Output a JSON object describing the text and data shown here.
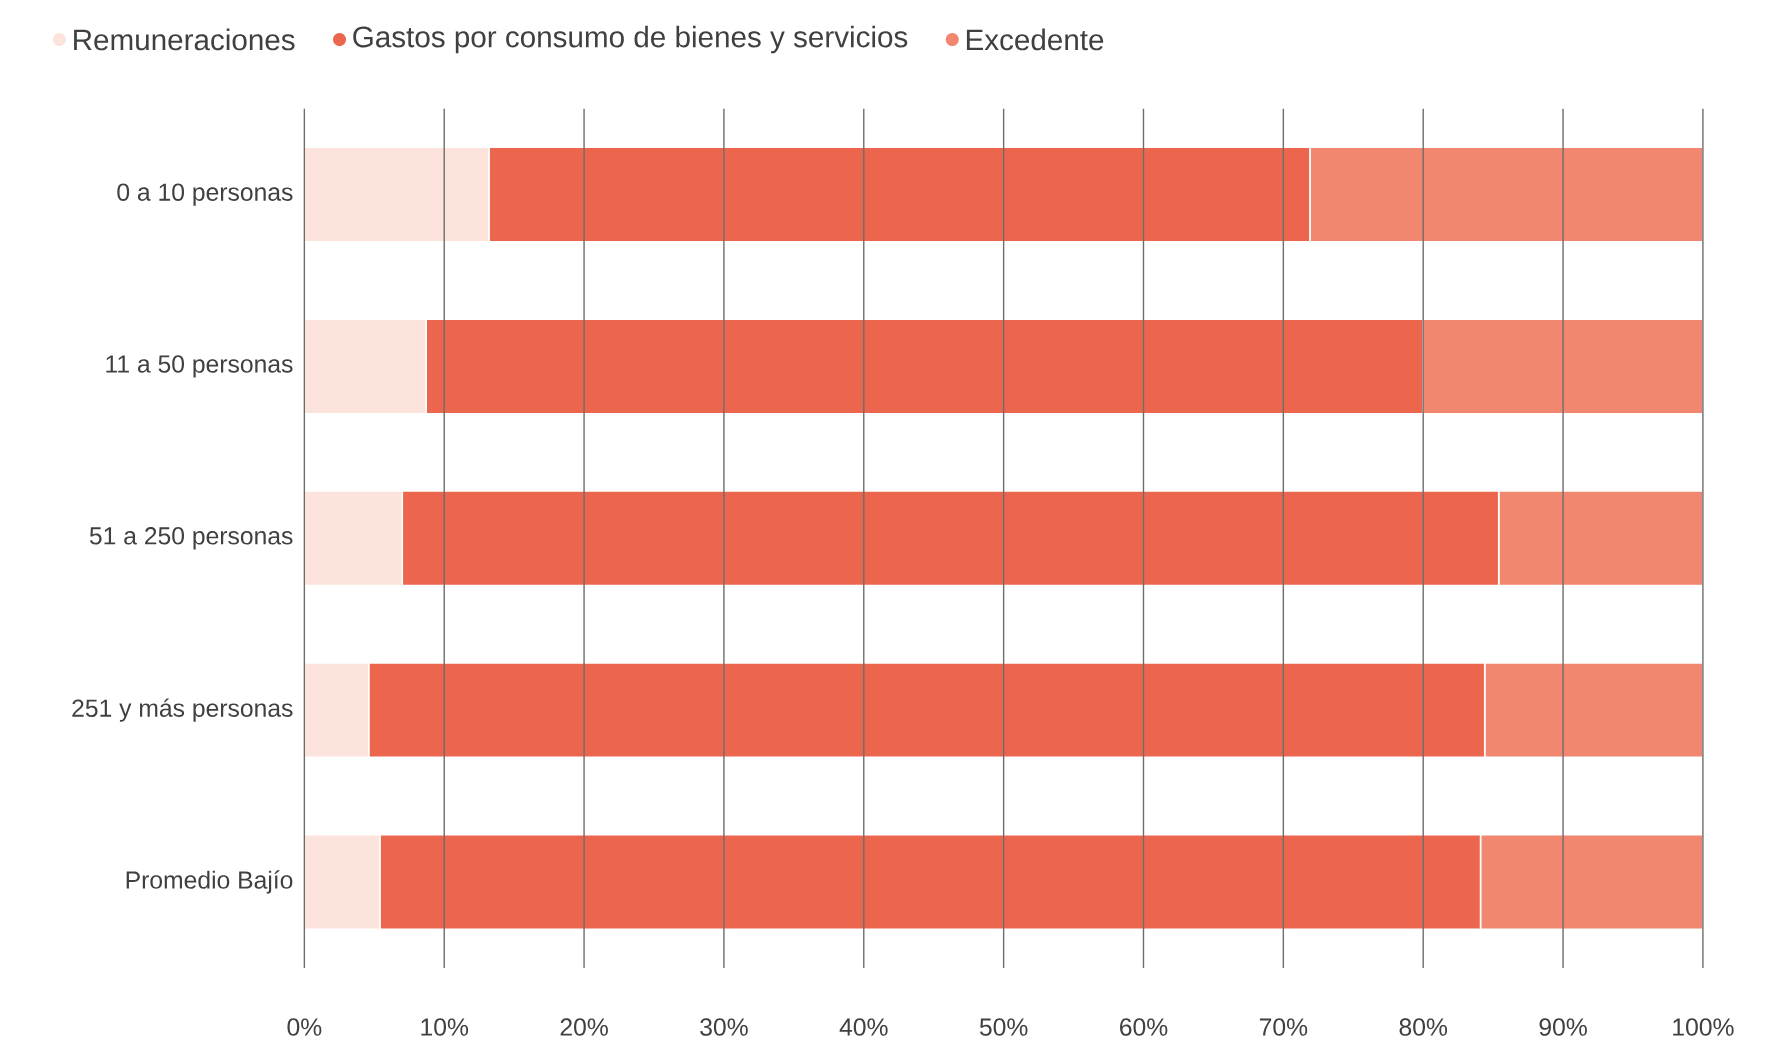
{
  "chart_data": {
    "type": "bar",
    "orientation": "horizontal",
    "stacked": true,
    "categories": [
      "0 a 10 personas",
      "11 a 50 personas",
      "51 a 250 personas",
      "251 y más personas",
      "Promedio Bajío"
    ],
    "series": [
      {
        "name": "Remuneraciones",
        "color": "#fce3dc",
        "values": [
          13.2,
          8.7,
          7.0,
          4.6,
          5.4
        ]
      },
      {
        "name": "Gastos por consumo de bienes y servicios",
        "color": "#ec664e",
        "values": [
          58.7,
          71.3,
          78.4,
          79.8,
          78.7
        ]
      },
      {
        "name": "Excedente",
        "color": "#f0876e",
        "values": [
          28.1,
          20.0,
          14.6,
          15.6,
          15.9
        ]
      }
    ],
    "xlim": [
      0,
      100
    ],
    "xticks": [
      {
        "value": 0,
        "label": "0%"
      },
      {
        "value": 10,
        "label": "10%"
      },
      {
        "value": 20,
        "label": "20%"
      },
      {
        "value": 30,
        "label": "30%"
      },
      {
        "value": 40,
        "label": "40%"
      },
      {
        "value": 50,
        "label": "50%"
      },
      {
        "value": 60,
        "label": "60%"
      },
      {
        "value": 70,
        "label": "70%"
      },
      {
        "value": 80,
        "label": "80%"
      },
      {
        "value": 90,
        "label": "90%"
      },
      {
        "value": 100,
        "label": "100%"
      }
    ],
    "grid": "x",
    "legend": "top left"
  }
}
